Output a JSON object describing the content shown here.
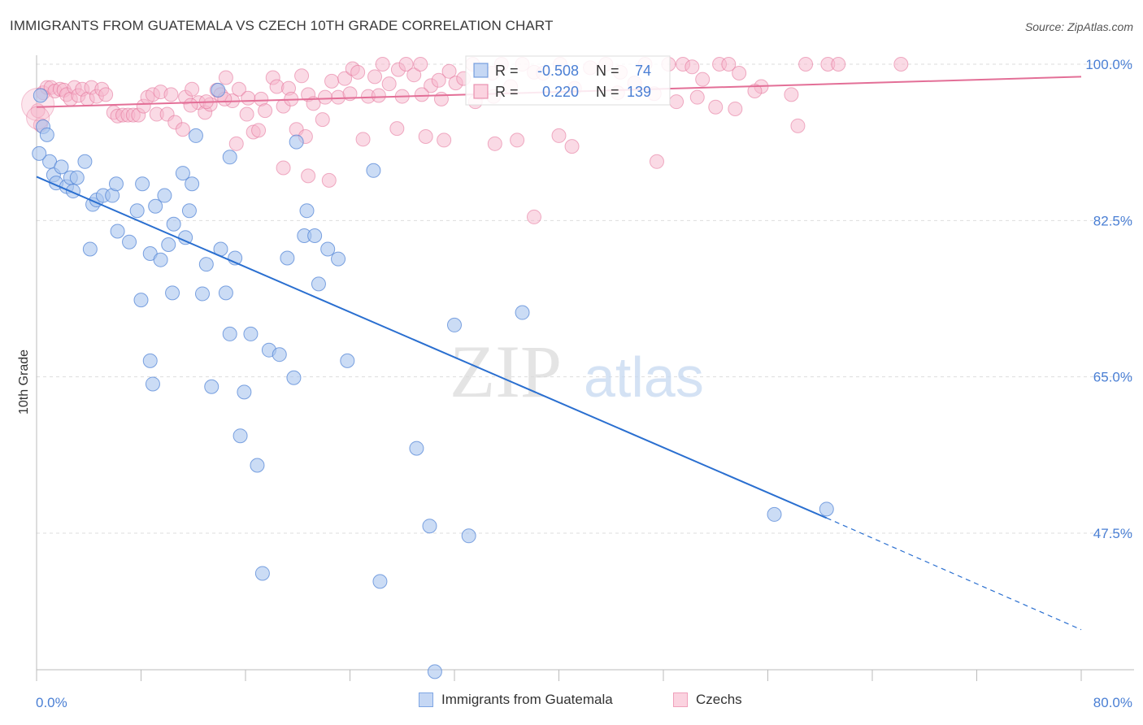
{
  "header": {
    "title": "IMMIGRANTS FROM GUATEMALA VS CZECH 10TH GRADE CORRELATION CHART",
    "source": "Source: ZipAtlas.com"
  },
  "watermark": {
    "zip": "ZIP",
    "atlas": "atlas"
  },
  "colors": {
    "blue": "#4a7fd4",
    "blue_fill": "#a9c4ef",
    "blue_line": "#2a6fd0",
    "pink": "#e36f97",
    "pink_fill": "#f6b6cb",
    "pink_line": "#e36f97",
    "axis_label": "#4a7fd4",
    "grid": "#dddddd"
  },
  "legend_box": {
    "rows": [
      {
        "r_label": "R =",
        "r_value": "-0.508",
        "n_label": "N =",
        "n_value": "74",
        "series": "blue"
      },
      {
        "r_label": "R =",
        "r_value": "0.220",
        "n_label": "N =",
        "n_value": "139",
        "series": "pink"
      }
    ]
  },
  "chart_data": {
    "type": "scatter",
    "title": "IMMIGRANTS FROM GUATEMALA VS CZECH 10TH GRADE CORRELATION CHART",
    "xlabel": "",
    "ylabel": "10th Grade",
    "xlim": [
      0,
      80
    ],
    "ylim": [
      37.5,
      102
    ],
    "x_tick_labels": [
      "0.0%",
      "80.0%"
    ],
    "y_ticks": [
      100.0,
      82.5,
      65.0,
      47.5
    ],
    "y_tick_labels": [
      "100.0%",
      "82.5%",
      "65.0%",
      "47.5%"
    ],
    "grid": "horizontal dashed",
    "legend_position": "bottom",
    "series": [
      {
        "name": "Immigrants from Guatemala",
        "color": "#4a7fd4",
        "trend": {
          "x": [
            0,
            60.5
          ],
          "y": [
            87.4,
            49.2
          ],
          "dashed_to": [
            80,
            36.7
          ]
        },
        "points": [
          [
            0.3,
            96.5
          ],
          [
            0.5,
            93.0
          ],
          [
            0.8,
            92.1
          ],
          [
            1.0,
            89.1
          ],
          [
            1.3,
            87.6
          ],
          [
            1.5,
            86.7
          ],
          [
            1.9,
            88.5
          ],
          [
            2.3,
            86.3
          ],
          [
            2.6,
            87.3
          ],
          [
            2.8,
            85.8
          ],
          [
            3.1,
            87.3
          ],
          [
            3.7,
            89.1
          ],
          [
            4.3,
            84.3
          ],
          [
            4.6,
            84.8
          ],
          [
            5.1,
            85.3
          ],
          [
            5.8,
            85.3
          ],
          [
            6.1,
            86.6
          ],
          [
            4.1,
            79.3
          ],
          [
            6.2,
            81.3
          ],
          [
            7.1,
            80.1
          ],
          [
            7.7,
            83.6
          ],
          [
            8.0,
            73.6
          ],
          [
            8.1,
            86.6
          ],
          [
            8.7,
            78.8
          ],
          [
            8.7,
            66.8
          ],
          [
            8.9,
            64.2
          ],
          [
            9.1,
            84.1
          ],
          [
            9.5,
            78.1
          ],
          [
            9.8,
            85.3
          ],
          [
            10.1,
            79.8
          ],
          [
            10.4,
            74.4
          ],
          [
            10.5,
            82.1
          ],
          [
            11.2,
            87.8
          ],
          [
            11.4,
            80.6
          ],
          [
            11.7,
            83.6
          ],
          [
            11.9,
            86.6
          ],
          [
            12.2,
            92.0
          ],
          [
            12.7,
            74.3
          ],
          [
            13.0,
            77.6
          ],
          [
            13.4,
            63.9
          ],
          [
            13.9,
            97.1
          ],
          [
            14.1,
            79.3
          ],
          [
            14.8,
            89.6
          ],
          [
            14.5,
            74.4
          ],
          [
            14.8,
            69.8
          ],
          [
            15.2,
            78.3
          ],
          [
            15.6,
            58.4
          ],
          [
            15.9,
            63.3
          ],
          [
            16.4,
            69.8
          ],
          [
            16.9,
            55.1
          ],
          [
            17.8,
            68.0
          ],
          [
            17.3,
            43.0
          ],
          [
            18.6,
            67.5
          ],
          [
            19.2,
            78.3
          ],
          [
            19.7,
            64.9
          ],
          [
            19.9,
            91.3
          ],
          [
            20.5,
            80.8
          ],
          [
            20.7,
            83.6
          ],
          [
            21.3,
            80.8
          ],
          [
            21.6,
            75.4
          ],
          [
            22.3,
            79.3
          ],
          [
            23.1,
            78.2
          ],
          [
            23.8,
            66.8
          ],
          [
            25.8,
            88.1
          ],
          [
            26.3,
            42.1
          ],
          [
            29.1,
            57.0
          ],
          [
            30.1,
            48.3
          ],
          [
            30.5,
            32.0
          ],
          [
            32.0,
            70.8
          ],
          [
            33.1,
            47.2
          ],
          [
            37.2,
            72.2
          ],
          [
            56.5,
            49.6
          ],
          [
            60.5,
            50.2
          ],
          [
            0.2,
            90.0
          ]
        ]
      },
      {
        "name": "Czechs",
        "color": "#e36f97",
        "trend": {
          "x": [
            0,
            80
          ],
          "y": [
            95.2,
            98.6
          ]
        },
        "points": [
          [
            0.1,
            94.8
          ],
          [
            0.3,
            93.2
          ],
          [
            0.5,
            96.8
          ],
          [
            0.8,
            97.4
          ],
          [
            1.1,
            97.4
          ],
          [
            1.4,
            97.0
          ],
          [
            1.8,
            97.2
          ],
          [
            2.1,
            97.1
          ],
          [
            2.3,
            96.6
          ],
          [
            2.6,
            96.1
          ],
          [
            2.9,
            97.4
          ],
          [
            3.2,
            96.5
          ],
          [
            3.5,
            97.2
          ],
          [
            3.9,
            96.1
          ],
          [
            4.2,
            97.4
          ],
          [
            4.6,
            96.4
          ],
          [
            5.0,
            97.2
          ],
          [
            5.3,
            96.6
          ],
          [
            5.9,
            94.6
          ],
          [
            6.2,
            94.2
          ],
          [
            6.6,
            94.3
          ],
          [
            7.0,
            94.3
          ],
          [
            7.4,
            94.3
          ],
          [
            7.8,
            94.3
          ],
          [
            8.2,
            95.3
          ],
          [
            8.5,
            96.3
          ],
          [
            8.9,
            96.6
          ],
          [
            9.2,
            94.4
          ],
          [
            9.5,
            96.9
          ],
          [
            10.0,
            94.4
          ],
          [
            10.3,
            96.6
          ],
          [
            10.6,
            93.5
          ],
          [
            11.2,
            92.7
          ],
          [
            11.4,
            96.3
          ],
          [
            11.9,
            97.2
          ],
          [
            12.4,
            95.7
          ],
          [
            12.9,
            94.6
          ],
          [
            13.3,
            95.5
          ],
          [
            13.8,
            97.1
          ],
          [
            14.1,
            96.6
          ],
          [
            14.5,
            98.5
          ],
          [
            15.0,
            95.9
          ],
          [
            15.5,
            97.2
          ],
          [
            16.1,
            94.4
          ],
          [
            16.6,
            92.4
          ],
          [
            17.2,
            96.1
          ],
          [
            17.5,
            94.8
          ],
          [
            18.1,
            98.5
          ],
          [
            18.4,
            97.5
          ],
          [
            18.9,
            95.3
          ],
          [
            19.3,
            97.3
          ],
          [
            19.9,
            92.7
          ],
          [
            20.3,
            98.7
          ],
          [
            20.8,
            96.6
          ],
          [
            21.2,
            95.6
          ],
          [
            21.9,
            93.8
          ],
          [
            22.6,
            98.1
          ],
          [
            23.1,
            96.3
          ],
          [
            23.6,
            98.4
          ],
          [
            24.2,
            99.5
          ],
          [
            24.6,
            99.1
          ],
          [
            25.4,
            96.4
          ],
          [
            25.9,
            98.6
          ],
          [
            26.5,
            100.0
          ],
          [
            27.0,
            97.8
          ],
          [
            27.7,
            99.4
          ],
          [
            28.3,
            100.0
          ],
          [
            28.9,
            98.8
          ],
          [
            29.4,
            100.0
          ],
          [
            30.2,
            97.6
          ],
          [
            30.8,
            98.2
          ],
          [
            31.6,
            99.2
          ],
          [
            32.1,
            97.9
          ],
          [
            32.7,
            98.4
          ],
          [
            33.4,
            100.0
          ],
          [
            34.0,
            96.8
          ],
          [
            34.9,
            99.0
          ],
          [
            35.6,
            100.0
          ],
          [
            36.3,
            97.5
          ],
          [
            37.2,
            100.0
          ],
          [
            38.1,
            99.1
          ],
          [
            38.8,
            99.0
          ],
          [
            40.1,
            100.0
          ],
          [
            41.2,
            97.3
          ],
          [
            42.4,
            99.6
          ],
          [
            43.6,
            100.0
          ],
          [
            44.7,
            99.1
          ],
          [
            45.8,
            97.9
          ],
          [
            46.6,
            100.0
          ],
          [
            48.4,
            100.0
          ],
          [
            49.5,
            100.0
          ],
          [
            50.2,
            99.7
          ],
          [
            51.0,
            98.3
          ],
          [
            52.3,
            100.0
          ],
          [
            53.0,
            100.0
          ],
          [
            53.8,
            99.0
          ],
          [
            55.5,
            97.5
          ],
          [
            57.8,
            96.6
          ],
          [
            58.9,
            100.0
          ],
          [
            60.6,
            100.0
          ],
          [
            61.4,
            100.0
          ],
          [
            66.2,
            100.0
          ],
          [
            20.6,
            91.9
          ],
          [
            15.3,
            91.1
          ],
          [
            25.0,
            91.6
          ],
          [
            27.6,
            92.8
          ],
          [
            29.8,
            91.9
          ],
          [
            31.2,
            91.5
          ],
          [
            35.1,
            91.1
          ],
          [
            36.8,
            91.5
          ],
          [
            41.0,
            90.8
          ],
          [
            52.0,
            95.2
          ],
          [
            53.5,
            95.0
          ],
          [
            58.3,
            93.1
          ],
          [
            18.9,
            88.4
          ],
          [
            20.8,
            87.5
          ],
          [
            22.4,
            87.0
          ],
          [
            47.5,
            89.1
          ],
          [
            38.1,
            82.9
          ],
          [
            11.8,
            95.4
          ],
          [
            13.0,
            95.8
          ],
          [
            14.4,
            96.1
          ],
          [
            16.2,
            96.2
          ],
          [
            17.0,
            92.6
          ],
          [
            19.5,
            96.1
          ],
          [
            22.1,
            96.3
          ],
          [
            24.0,
            96.7
          ],
          [
            26.2,
            96.5
          ],
          [
            28.0,
            96.4
          ],
          [
            29.5,
            96.6
          ],
          [
            31.0,
            96.1
          ],
          [
            33.6,
            95.8
          ],
          [
            35.0,
            96.4
          ],
          [
            40.0,
            92.0
          ],
          [
            44.5,
            96.8
          ],
          [
            47.3,
            96.7
          ],
          [
            49.0,
            95.8
          ],
          [
            50.6,
            96.3
          ],
          [
            55.0,
            97.0
          ]
        ]
      }
    ]
  },
  "bottom_legend": {
    "items": [
      {
        "label": "Immigrants from Guatemala",
        "series": "blue"
      },
      {
        "label": "Czechs",
        "series": "pink"
      }
    ]
  }
}
